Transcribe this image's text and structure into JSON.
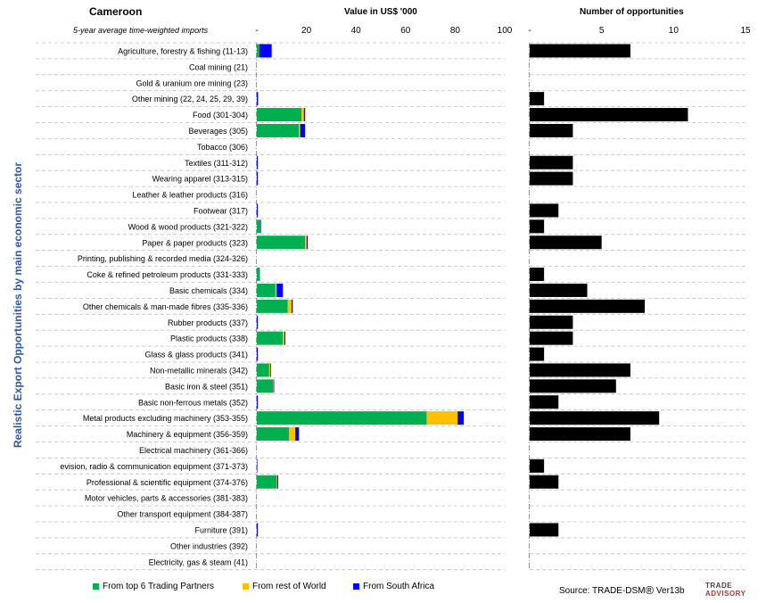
{
  "header": {
    "country": "Cameroon",
    "subtitle": "5-year average time-weighted imports",
    "value_title": "Value in US$ '000",
    "opp_title": "Number of opportunities",
    "y_axis_title": "Realistic Export Opportunities by main economic sector"
  },
  "legend": {
    "top6": "From top 6 Trading Partners",
    "row": "From rest of World",
    "sa": "From South Africa"
  },
  "source": {
    "text": "Source: TRADE-DSM",
    "reg": "®",
    "version": "Ver13b",
    "logo_line1": "TRADE",
    "logo_line2": "ADVISORY"
  },
  "colors": {
    "top6": "#00b050",
    "row": "#ffc000",
    "sa": "#0000ff",
    "opp": "#000000",
    "ytitle": "#2e5aa0"
  },
  "chart_data": [
    {
      "type": "bar",
      "orientation": "horizontal",
      "stacked": true,
      "title": "Value in US$ '000",
      "xlim": [
        0,
        100
      ],
      "ticks": [
        "-",
        "20",
        "40",
        "60",
        "80",
        "100"
      ],
      "tick_values": [
        0,
        20,
        40,
        60,
        80,
        100
      ],
      "categories": [
        "Agriculture, forestry & fishing (11-13)",
        "Coal mining (21)",
        "Gold & uranium ore mining (23)",
        "Other mining (22, 24, 25, 29, 39)",
        "Food (301-304)",
        "Beverages (305)",
        "Tobacco (306)",
        "Textiles (311-312)",
        "Wearing apparel (313-315)",
        "Leather & leather products (316)",
        "Footwear (317)",
        "Wood & wood products (321-322)",
        "Paper & paper products (323)",
        "Printing, publishing & recorded media (324-326)",
        "Coke & refined petroleum products (331-333)",
        "Basic chemicals (334)",
        "Other chemicals & man-made fibres (335-336)",
        "Rubber products (337)",
        "Plastic products (338)",
        "Glass & glass products (341)",
        "Non-metallic minerals (342)",
        "Basic iron & steel (351)",
        "Basic non-ferrous metals (352)",
        "Metal products excluding machinery (353-355)",
        "Machinery & equipment (356-359)",
        "Electrical machinery (361-366)",
        "evision, radio & communication equipment (371-373)",
        "Professional & scientific equipment (374-376)",
        "Motor vehicles, parts & accessories (381-383)",
        "Other transport equipment (384-387)",
        "Furniture (391)",
        "Other industries (392)",
        "Electricity, gas & steam (41)"
      ],
      "series": [
        {
          "name": "From top 6 Trading Partners",
          "values": [
            1.0,
            0,
            0,
            0,
            18.0,
            17.0,
            0,
            0,
            0,
            0,
            0,
            1.5,
            19.5,
            0,
            1.0,
            7.5,
            12.5,
            0,
            10.5,
            0,
            5.0,
            6.5,
            0,
            68.5,
            13.0,
            0,
            0,
            8.0,
            0,
            0,
            0,
            0,
            0
          ]
        },
        {
          "name": "From rest of World",
          "values": [
            0,
            0,
            0,
            0,
            1.0,
            0.5,
            0,
            0,
            0,
            0,
            0,
            0,
            0.6,
            0,
            0,
            0.5,
            1.5,
            0,
            0.6,
            0,
            0.4,
            0.2,
            0,
            12.5,
            2.5,
            0,
            0,
            0.2,
            0,
            0,
            0,
            0,
            0
          ]
        },
        {
          "name": "From South Africa",
          "values": [
            5.0,
            0,
            0,
            0.5,
            0.5,
            2.0,
            0,
            0.4,
            0.4,
            0,
            0.4,
            0.2,
            0.4,
            0,
            0.2,
            2.5,
            0.5,
            0.4,
            0.4,
            0.4,
            0.3,
            0.3,
            0.4,
            2.5,
            1.5,
            0,
            0.2,
            0.4,
            0,
            0,
            0.4,
            0,
            0
          ]
        }
      ]
    },
    {
      "type": "bar",
      "orientation": "horizontal",
      "title": "Number of opportunities",
      "xlim": [
        0,
        15
      ],
      "ticks": [
        "-",
        "5",
        "10",
        "15"
      ],
      "tick_values": [
        0,
        5,
        10,
        15
      ],
      "values": [
        7,
        0,
        0,
        1,
        11,
        3,
        0,
        3,
        3,
        0,
        2,
        1,
        5,
        0,
        1,
        4,
        8,
        3,
        3,
        1,
        7,
        6,
        2,
        9,
        7,
        0,
        1,
        2,
        0,
        0,
        2,
        0,
        0
      ]
    }
  ]
}
